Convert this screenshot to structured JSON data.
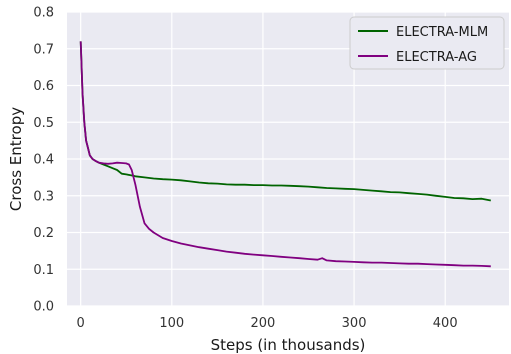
{
  "chart_data": {
    "type": "line",
    "title": "",
    "xlabel": "Steps (in thousands)",
    "ylabel": "Cross Entropy",
    "xlim": [
      -15,
      470
    ],
    "ylim": [
      0.0,
      0.8
    ],
    "xticks": [
      0,
      100,
      200,
      300,
      400
    ],
    "yticks": [
      0.0,
      0.1,
      0.2,
      0.3,
      0.4,
      0.5,
      0.6,
      0.7,
      0.8
    ],
    "xtick_labels": [
      "0",
      "100",
      "200",
      "300",
      "400"
    ],
    "ytick_labels": [
      "0.0",
      "0.1",
      "0.2",
      "0.3",
      "0.4",
      "0.5",
      "0.6",
      "0.7",
      "0.8"
    ],
    "grid": true,
    "background": "#eaeaf2",
    "legend_position": "top-right",
    "series": [
      {
        "name": "ELECTRA-MLM",
        "color": "#006400",
        "x": [
          0,
          2,
          4,
          6,
          8,
          10,
          13,
          16,
          20,
          25,
          30,
          35,
          40,
          45,
          50,
          55,
          60,
          70,
          80,
          90,
          100,
          110,
          120,
          130,
          140,
          150,
          160,
          170,
          180,
          190,
          200,
          210,
          220,
          230,
          240,
          250,
          260,
          270,
          280,
          290,
          300,
          310,
          320,
          330,
          340,
          350,
          360,
          370,
          380,
          390,
          400,
          410,
          420,
          430,
          440,
          450
        ],
        "values": [
          0.72,
          0.58,
          0.5,
          0.45,
          0.43,
          0.41,
          0.4,
          0.395,
          0.39,
          0.385,
          0.38,
          0.375,
          0.37,
          0.36,
          0.358,
          0.356,
          0.353,
          0.35,
          0.347,
          0.345,
          0.344,
          0.342,
          0.339,
          0.336,
          0.334,
          0.333,
          0.331,
          0.33,
          0.33,
          0.329,
          0.329,
          0.328,
          0.328,
          0.327,
          0.326,
          0.325,
          0.323,
          0.321,
          0.32,
          0.319,
          0.318,
          0.316,
          0.314,
          0.312,
          0.31,
          0.309,
          0.307,
          0.305,
          0.303,
          0.3,
          0.297,
          0.294,
          0.293,
          0.291,
          0.292,
          0.287
        ]
      },
      {
        "name": "ELECTRA-AG",
        "color": "#800080",
        "x": [
          0,
          2,
          4,
          6,
          8,
          10,
          13,
          16,
          20,
          25,
          30,
          35,
          40,
          45,
          50,
          53,
          56,
          60,
          65,
          70,
          75,
          80,
          90,
          100,
          110,
          120,
          130,
          140,
          150,
          160,
          170,
          180,
          190,
          200,
          210,
          220,
          230,
          240,
          250,
          260,
          265,
          270,
          280,
          290,
          300,
          310,
          320,
          330,
          340,
          350,
          360,
          370,
          380,
          390,
          400,
          410,
          420,
          430,
          440,
          450
        ],
        "values": [
          0.72,
          0.58,
          0.5,
          0.45,
          0.43,
          0.41,
          0.4,
          0.395,
          0.39,
          0.388,
          0.387,
          0.388,
          0.39,
          0.389,
          0.388,
          0.385,
          0.37,
          0.33,
          0.27,
          0.225,
          0.21,
          0.2,
          0.185,
          0.177,
          0.17,
          0.165,
          0.16,
          0.156,
          0.152,
          0.148,
          0.145,
          0.142,
          0.14,
          0.138,
          0.136,
          0.134,
          0.132,
          0.13,
          0.128,
          0.126,
          0.13,
          0.124,
          0.122,
          0.121,
          0.12,
          0.119,
          0.118,
          0.118,
          0.117,
          0.116,
          0.115,
          0.115,
          0.114,
          0.113,
          0.112,
          0.111,
          0.11,
          0.11,
          0.109,
          0.108
        ]
      }
    ]
  }
}
